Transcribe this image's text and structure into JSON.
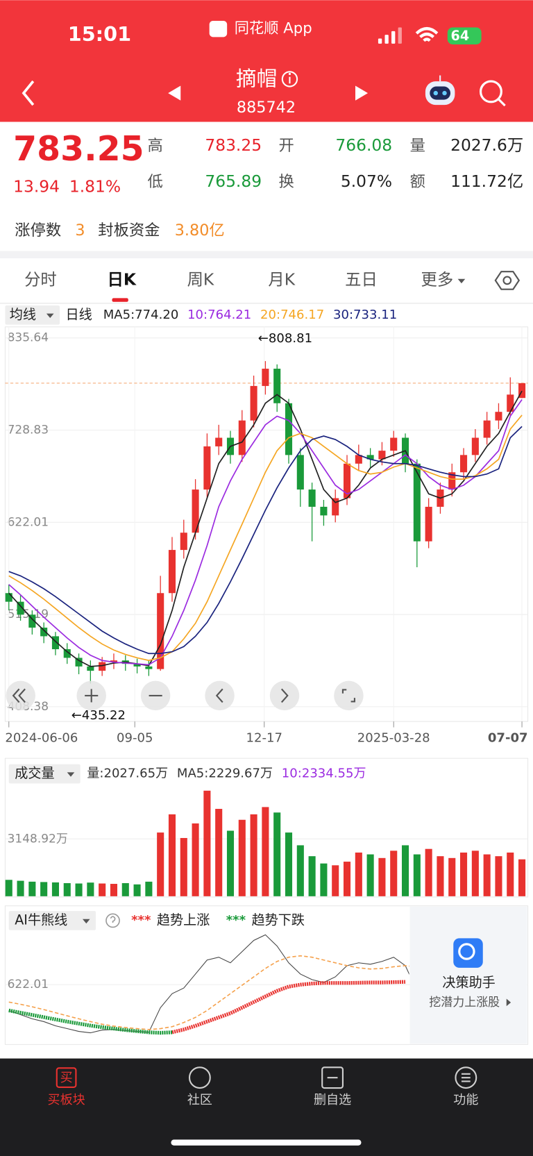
{
  "status": {
    "time": "15:01",
    "app": "同花顺 App",
    "battery": "64"
  },
  "nav": {
    "title": "摘帽",
    "code": "885742"
  },
  "quote": {
    "price": 783.25,
    "change": 13.94,
    "change_pct": "1.81%",
    "high_label": "高",
    "high": 783.25,
    "open_label": "开",
    "open": 766.08,
    "vol_label": "量",
    "volume": "2027.6万",
    "low_label": "低",
    "low": 765.89,
    "turn_label": "换",
    "turnover": "5.07%",
    "amt_label": "额",
    "amount": "111.72亿"
  },
  "limit": {
    "count_label": "涨停数",
    "count": 3,
    "fund_label": "封板资金",
    "fund": "3.80亿"
  },
  "tabs": [
    "分时",
    "日K",
    "周K",
    "月K",
    "五日",
    "更多"
  ],
  "chart_data": [
    {
      "type": "candlestick",
      "selector": "均线",
      "period": "日线",
      "ylim": [
        408.38,
        835.64
      ],
      "yticks": [
        408.38,
        515.19,
        622.01,
        728.83,
        835.64
      ],
      "xticks": [
        {
          "value": 0,
          "label": "2024-06-06"
        },
        {
          "value": 10.8,
          "label": "09-05"
        },
        {
          "value": 21.9,
          "label": "12-17"
        },
        {
          "value": 33,
          "label": "2025-03-28"
        },
        {
          "value": 44,
          "label": "07-07"
        }
      ],
      "annotations": [
        "←808.81",
        "←435.22"
      ],
      "candles": [
        [
          540,
          550,
          520,
          530
        ],
        [
          530,
          538,
          508,
          515
        ],
        [
          515,
          520,
          492,
          500
        ],
        [
          500,
          506,
          482,
          490
        ],
        [
          490,
          495,
          468,
          475
        ],
        [
          475,
          482,
          458,
          465
        ],
        [
          465,
          470,
          446,
          455
        ],
        [
          455,
          462,
          435.22,
          450
        ],
        [
          450,
          466,
          444,
          460
        ],
        [
          460,
          470,
          452,
          462
        ],
        [
          462,
          468,
          450,
          458
        ],
        [
          458,
          464,
          447,
          455
        ],
        [
          455,
          462,
          444,
          452
        ],
        [
          452,
          560,
          450,
          540
        ],
        [
          540,
          605,
          530,
          590
        ],
        [
          590,
          625,
          580,
          610
        ],
        [
          610,
          672,
          602,
          660
        ],
        [
          660,
          725,
          650,
          710
        ],
        [
          710,
          735,
          700,
          720
        ],
        [
          720,
          728,
          690,
          700
        ],
        [
          700,
          752,
          692,
          740
        ],
        [
          740,
          792,
          732,
          780
        ],
        [
          780,
          808.81,
          770,
          800
        ],
        [
          800,
          805,
          750,
          760
        ],
        [
          760,
          765,
          690,
          700
        ],
        [
          700,
          708,
          640,
          660
        ],
        [
          660,
          668,
          600,
          640
        ],
        [
          640,
          648,
          618,
          630
        ],
        [
          630,
          660,
          622,
          650
        ],
        [
          650,
          700,
          642,
          690
        ],
        [
          690,
          712,
          682,
          700
        ],
        [
          700,
          708,
          686,
          695
        ],
        [
          695,
          715,
          688,
          705
        ],
        [
          705,
          728,
          698,
          720
        ],
        [
          720,
          725,
          680,
          690
        ],
        [
          690,
          695,
          570,
          600
        ],
        [
          600,
          650,
          592,
          640
        ],
        [
          640,
          668,
          632,
          660
        ],
        [
          660,
          690,
          652,
          680
        ],
        [
          680,
          708,
          672,
          700
        ],
        [
          700,
          730,
          692,
          720
        ],
        [
          720,
          750,
          712,
          740
        ],
        [
          740,
          760,
          730,
          750
        ],
        [
          750,
          790,
          745,
          770
        ],
        [
          766.08,
          783.25,
          765.89,
          783.25
        ]
      ],
      "series": [
        {
          "legend": "MA5:774.20",
          "color": "#222222",
          "values": [
            540,
            525,
            510,
            497,
            484,
            472,
            462,
            455,
            456,
            459,
            460,
            458,
            456,
            480,
            520,
            570,
            610,
            650,
            690,
            710,
            715,
            735,
            760,
            770,
            760,
            730,
            695,
            660,
            645,
            650,
            665,
            685,
            695,
            700,
            705,
            680,
            655,
            650,
            655,
            670,
            690,
            710,
            725,
            750,
            774.2
          ]
        },
        {
          "legend": "10:764.21",
          "color": "#9b2be0",
          "values": [
            550,
            538,
            525,
            512,
            500,
            488,
            477,
            468,
            462,
            460,
            459,
            458,
            457,
            465,
            490,
            520,
            555,
            595,
            640,
            670,
            695,
            715,
            735,
            745,
            740,
            725,
            705,
            685,
            665,
            655,
            660,
            670,
            680,
            690,
            700,
            690,
            675,
            665,
            660,
            665,
            675,
            690,
            705,
            745,
            764.21
          ]
        },
        {
          "legend": "20:746.17",
          "color": "#f5a623",
          "values": [
            560,
            552,
            543,
            533,
            522,
            511,
            500,
            490,
            481,
            474,
            469,
            465,
            462,
            465,
            472,
            487,
            505,
            530,
            560,
            590,
            620,
            650,
            680,
            705,
            720,
            725,
            720,
            710,
            700,
            690,
            682,
            678,
            680,
            686,
            690,
            685,
            680,
            675,
            672,
            672,
            676,
            684,
            695,
            730,
            746.17
          ]
        },
        {
          "legend": "30:733.11",
          "color": "#1a237e",
          "values": [
            565,
            560,
            553,
            545,
            536,
            526,
            516,
            506,
            496,
            488,
            481,
            475,
            470,
            470,
            472,
            478,
            490,
            506,
            528,
            553,
            580,
            608,
            636,
            662,
            685,
            705,
            718,
            722,
            718,
            710,
            700,
            695,
            692,
            690,
            690,
            688,
            684,
            680,
            677,
            675,
            675,
            678,
            684,
            720,
            733.11
          ]
        }
      ]
    },
    {
      "type": "bar",
      "selector": "成交量",
      "legend": [
        {
          "text": "量:2027.65万",
          "color": "#333333"
        },
        {
          "text": "MA5:2229.67万",
          "color": "#333333"
        },
        {
          "text": "10:2334.55万",
          "color": "#9b2be0"
        }
      ],
      "ylim": [
        0,
        6200
      ],
      "yticks": [
        {
          "value": 3148.92,
          "label": "3148.92万"
        }
      ],
      "values": [
        900,
        850,
        800,
        780,
        760,
        720,
        700,
        750,
        700,
        680,
        720,
        650,
        800,
        3500,
        4500,
        3200,
        4000,
        5800,
        4800,
        3600,
        4200,
        4500,
        4900,
        4600,
        3500,
        2800,
        2200,
        1800,
        1700,
        1900,
        2400,
        2300,
        2100,
        2500,
        2800,
        2300,
        2600,
        2200,
        2100,
        2400,
        2500,
        2300,
        2200,
        2400,
        2027.65
      ]
    },
    {
      "type": "line",
      "selector": "AI牛熊线",
      "ylim": [
        419,
        872
      ],
      "yticks": [
        622.01
      ],
      "series": [
        {
          "name": "趋势上涨",
          "marker": "***",
          "color": "#e8322f",
          "values": [
            null,
            null,
            null,
            null,
            null,
            null,
            null,
            null,
            null,
            null,
            null,
            null,
            null,
            null,
            452,
            462,
            475,
            490,
            505,
            520,
            540,
            560,
            580,
            600,
            615,
            622,
            626,
            628,
            628,
            628,
            629,
            630,
            630,
            631,
            632
          ]
        },
        {
          "name": "趋势下跌",
          "marker": "***",
          "color": "#1a9a3a",
          "values": [
            530,
            522,
            514,
            506,
            498,
            490,
            483,
            476,
            470,
            465,
            460,
            456,
            452,
            450,
            452,
            null,
            null,
            null,
            null,
            null,
            null,
            null,
            null,
            null,
            null,
            null,
            null,
            null,
            null,
            null,
            null,
            null,
            null,
            null,
            null
          ]
        }
      ],
      "assistant": {
        "title": "决策助手",
        "subtitle": "挖潜力上涨股"
      }
    }
  ],
  "bottom_tabs": {
    "buy_icon": "买",
    "labels": [
      "买板块",
      "社区",
      "删自选",
      "功能"
    ]
  }
}
